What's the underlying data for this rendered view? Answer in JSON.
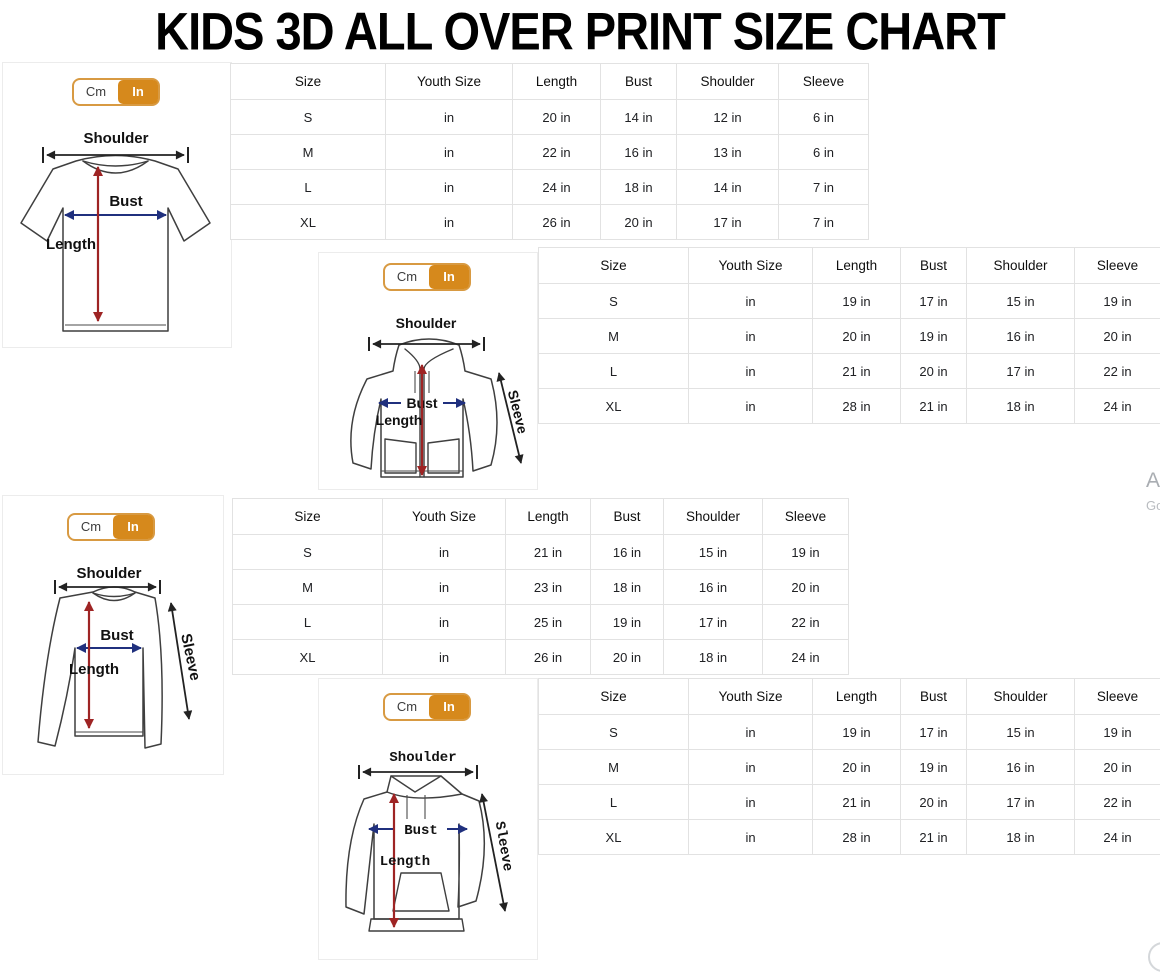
{
  "title": "KIDS 3D ALL OVER PRINT SIZE CHART",
  "unit_toggle": {
    "cm": "Cm",
    "in": "In"
  },
  "diagram_labels": {
    "shoulder": "Shoulder",
    "bust": "Bust",
    "length": "Length",
    "sleeve": "Sleeve"
  },
  "columns": [
    "Size",
    "Youth Size",
    "Length",
    "Bust",
    "Shoulder",
    "Sleeve"
  ],
  "sections": [
    {
      "garment": "t-shirt",
      "rows": [
        [
          "S",
          "in",
          "20 in",
          "14 in",
          "12 in",
          "6 in"
        ],
        [
          "M",
          "in",
          "22 in",
          "16 in",
          "13 in",
          "6 in"
        ],
        [
          "L",
          "in",
          "24 in",
          "18 in",
          "14 in",
          "7 in"
        ],
        [
          "XL",
          "in",
          "26 in",
          "20 in",
          "17 in",
          "7 in"
        ]
      ]
    },
    {
      "garment": "zip-hoodie",
      "rows": [
        [
          "S",
          "in",
          "19 in",
          "17 in",
          "15 in",
          "19 in"
        ],
        [
          "M",
          "in",
          "20 in",
          "19 in",
          "16 in",
          "20 in"
        ],
        [
          "L",
          "in",
          "21 in",
          "20 in",
          "17 in",
          "22 in"
        ],
        [
          "XL",
          "in",
          "28 in",
          "21 in",
          "18 in",
          "24 in"
        ]
      ]
    },
    {
      "garment": "long-sleeve-shirt",
      "rows": [
        [
          "S",
          "in",
          "21 in",
          "16 in",
          "15 in",
          "19 in"
        ],
        [
          "M",
          "in",
          "23 in",
          "18 in",
          "16 in",
          "20 in"
        ],
        [
          "L",
          "in",
          "25 in",
          "19 in",
          "17 in",
          "22 in"
        ],
        [
          "XL",
          "in",
          "26 in",
          "20 in",
          "18 in",
          "24 in"
        ]
      ]
    },
    {
      "garment": "pullover-hoodie",
      "rows": [
        [
          "S",
          "in",
          "19 in",
          "17 in",
          "15 in",
          "19 in"
        ],
        [
          "M",
          "in",
          "20 in",
          "19 in",
          "16 in",
          "20 in"
        ],
        [
          "L",
          "in",
          "21 in",
          "20 in",
          "17 in",
          "22 in"
        ],
        [
          "XL",
          "in",
          "28 in",
          "21 in",
          "18 in",
          "24 in"
        ]
      ]
    }
  ],
  "watermark": {
    "line1": "A",
    "line2": "Go"
  },
  "colors": {
    "accent_orange": "#d6891c",
    "length_arrow": "#9e2424",
    "bust_arrow": "#20307e",
    "shoulder_arrow": "#222222",
    "sleeve_arrow": "#111111",
    "table_border": "#e2e2e2"
  }
}
